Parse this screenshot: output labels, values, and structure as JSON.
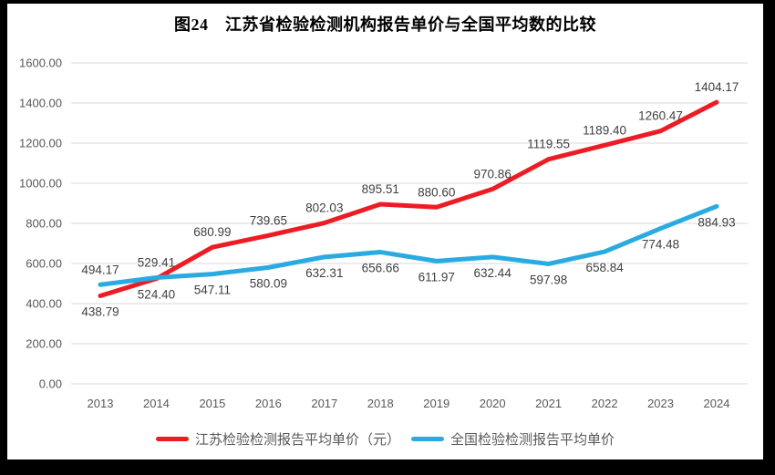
{
  "title": "图24　江苏省检验检测机构报告单价与全国平均数的比较",
  "colors": {
    "frame": "#000000",
    "chart_background": "#FFFFFF",
    "gridline": "#D9D9D9",
    "axis_text": "#595959",
    "data_label_text": "#404040",
    "legend_text": "#595959",
    "title_text": "#000000",
    "series_jiangsu": "#ED1C24",
    "series_national": "#29ABE2"
  },
  "chart_data": {
    "type": "line",
    "title": "图24　江苏省检验检测机构报告单价与全国平均数的比较",
    "categories": [
      2013,
      2014,
      2015,
      2016,
      2017,
      2018,
      2019,
      2020,
      2021,
      2022,
      2023,
      2024
    ],
    "series": [
      {
        "name": "江苏检验检测报告平均单价（元）",
        "color": "#ED1C24",
        "values": [
          438.79,
          524.4,
          680.99,
          739.65,
          802.03,
          895.51,
          880.6,
          970.86,
          1119.55,
          1189.4,
          1260.47,
          1404.17
        ],
        "label_side": [
          "below",
          "below",
          "above",
          "above",
          "above",
          "above",
          "above",
          "above",
          "above",
          "above",
          "above",
          "above"
        ]
      },
      {
        "name": "全国检验检测报告平均单价",
        "color": "#29ABE2",
        "values": [
          494.17,
          529.41,
          547.11,
          580.09,
          632.31,
          656.66,
          611.97,
          632.44,
          597.98,
          658.84,
          774.48,
          884.93
        ],
        "label_side": [
          "above",
          "above",
          "below",
          "below",
          "below",
          "below",
          "below",
          "below",
          "below",
          "below",
          "below",
          "below"
        ]
      }
    ],
    "xlabel": "",
    "ylabel": "",
    "ylim": [
      0,
      1600
    ],
    "y_tick_step": 200,
    "y_tick_format": "0.00",
    "grid": true,
    "data_labels": true,
    "legend_position": "bottom"
  }
}
